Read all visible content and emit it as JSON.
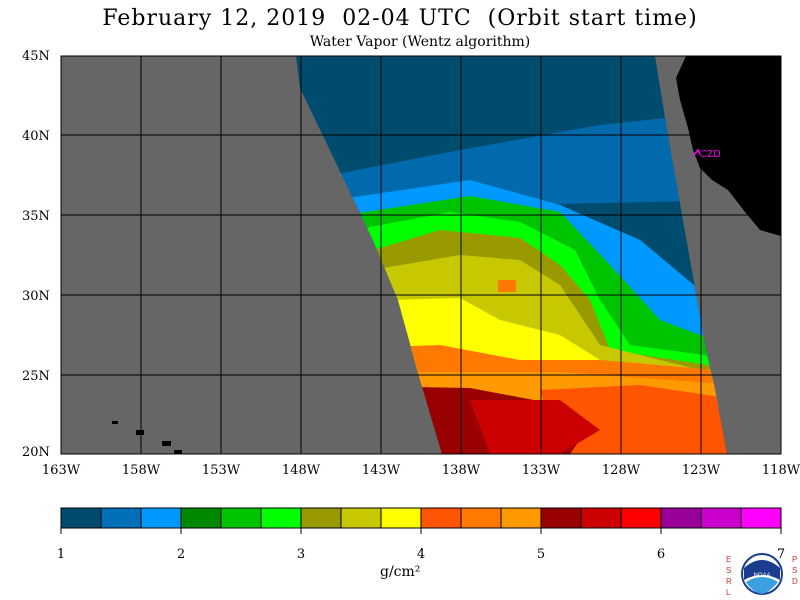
{
  "title": "February 12, 2019  02-04 UTC  (Orbit start time)",
  "subtitle": "Water Vapor (Wentz algorithm)",
  "map": {
    "lat_labels": [
      "45N",
      "40N",
      "35N",
      "30N",
      "25N",
      "20N"
    ],
    "lon_labels": [
      "163W",
      "158W",
      "153W",
      "148W",
      "143W",
      "138W",
      "133W",
      "128W",
      "123W",
      "118W"
    ],
    "station_label": "CZD",
    "colors": {
      "land": "#000000",
      "no_data": "#666666",
      "station": "#ff00ff"
    }
  },
  "colorbar": {
    "labels": [
      "1",
      "2",
      "3",
      "4",
      "5",
      "6",
      "7"
    ],
    "units": "g/cm²",
    "colors": [
      "#004c6e",
      "#0070b8",
      "#0099ff",
      "#008800",
      "#00c400",
      "#00ff00",
      "#999900",
      "#c8c800",
      "#ffff00",
      "#ff5500",
      "#ff7800",
      "#ff9900",
      "#990000",
      "#cc0000",
      "#ff0000",
      "#990099",
      "#cc00cc",
      "#ff00ff"
    ]
  },
  "logo": {
    "left_text": "ESRL",
    "right_text": "PSD",
    "center_text": "NOAA"
  }
}
